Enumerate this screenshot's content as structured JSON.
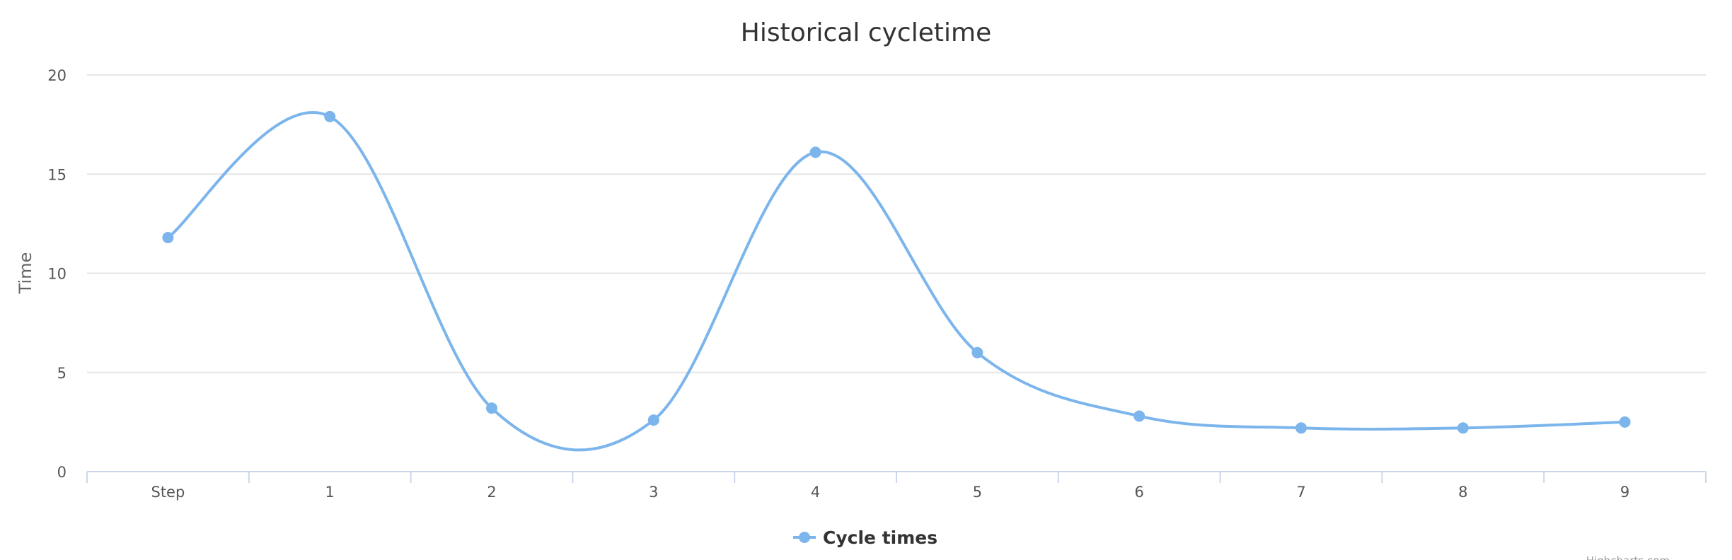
{
  "chart_data": {
    "type": "line",
    "title": "Historical cycletime",
    "xlabel": "",
    "ylabel": "Time",
    "categories": [
      "Step",
      "1",
      "2",
      "3",
      "4",
      "5",
      "6",
      "7",
      "8",
      "9"
    ],
    "series": [
      {
        "name": "Cycle times",
        "values": [
          11.8,
          17.9,
          3.2,
          2.6,
          16.1,
          6.0,
          2.8,
          2.2,
          2.2,
          2.5
        ]
      }
    ],
    "ylim": [
      0,
      20
    ],
    "yticks": [
      "0",
      "5",
      "10",
      "15",
      "20"
    ],
    "grid": true,
    "legend_position": "bottom-center",
    "smooth": true,
    "series_color": "#7cb5ec",
    "credit": "Highcharts.com"
  }
}
